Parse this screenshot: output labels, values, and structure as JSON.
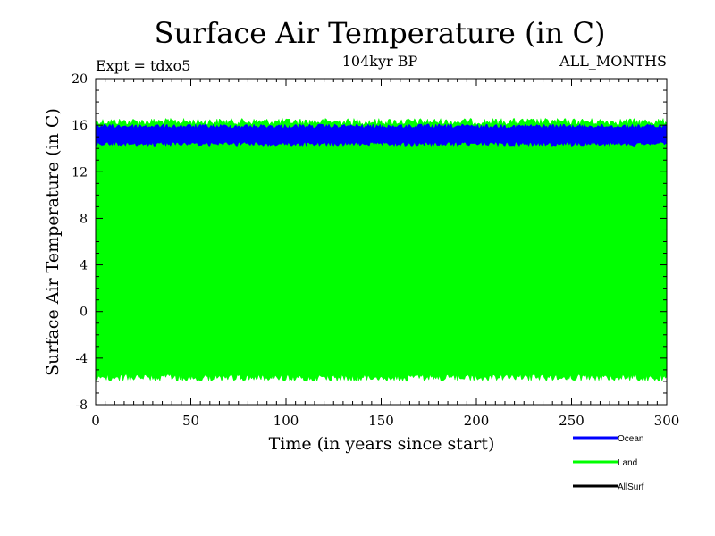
{
  "chart_data": {
    "type": "area",
    "title": "Surface Air Temperature (in C)",
    "subtitle": "104kyr BP",
    "annotation_left": "Expt = tdxo5",
    "annotation_right": "ALL_MONTHS",
    "xlabel": "Time (in years since start)",
    "ylabel": "Surface Air Temperature (in C)",
    "xlim": [
      0,
      300
    ],
    "ylim": [
      -8,
      20
    ],
    "x_ticks": [
      0,
      50,
      100,
      150,
      200,
      250,
      300
    ],
    "y_ticks": [
      -8,
      -4,
      0,
      4,
      8,
      12,
      16,
      20
    ],
    "grid": false,
    "legend_position": "bottom-right",
    "series": [
      {
        "name": "Ocean",
        "color": "#0000ff",
        "min": 14.2,
        "max": 16.1
      },
      {
        "name": "Land",
        "color": "#00ff00",
        "min": -6.0,
        "max": 16.6
      },
      {
        "name": "AllSurf",
        "color": "#000000",
        "min": null,
        "max": null
      }
    ]
  }
}
